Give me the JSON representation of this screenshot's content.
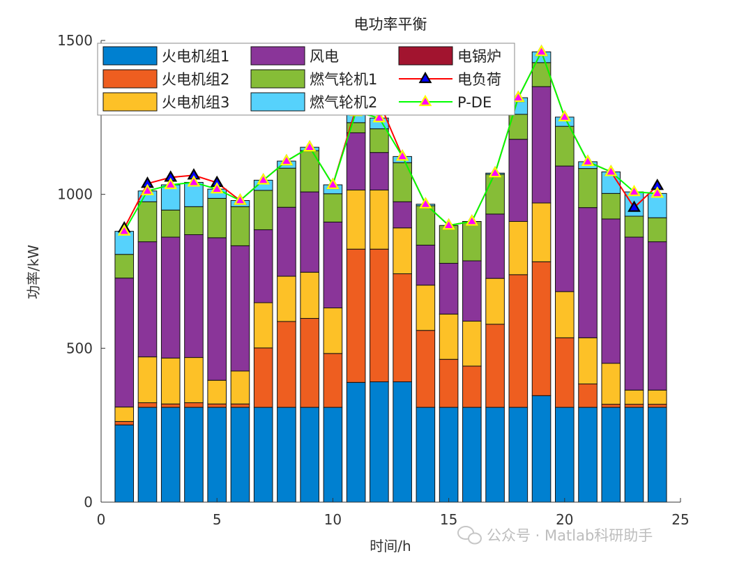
{
  "chart_data": {
    "type": "bar",
    "stacked": true,
    "title": "电功率平衡",
    "xlabel": "时间/h",
    "ylabel": "功率/kW",
    "xlim": [
      0,
      25
    ],
    "ylim": [
      0,
      1500
    ],
    "xticks": [
      0,
      5,
      10,
      15,
      20,
      25
    ],
    "yticks": [
      0,
      500,
      1000,
      1500
    ],
    "grid": false,
    "legend_position": "top-left",
    "x": [
      1,
      2,
      3,
      4,
      5,
      6,
      7,
      8,
      9,
      10,
      11,
      12,
      13,
      14,
      15,
      16,
      17,
      18,
      19,
      20,
      21,
      22,
      23,
      24
    ],
    "series": [
      {
        "name": "火电机组1",
        "color": "#0080D0",
        "values": [
          251,
          308,
          308,
          308,
          308,
          308,
          308,
          308,
          308,
          308,
          389,
          391,
          391,
          308,
          308,
          308,
          308,
          308,
          346,
          308,
          308,
          308,
          308,
          308
        ]
      },
      {
        "name": "火电机组2",
        "color": "#EE5E20",
        "values": [
          11,
          15,
          11,
          15,
          11,
          11,
          193,
          279,
          289,
          175,
          433,
          431,
          351,
          250,
          156,
          134,
          270,
          431,
          435,
          226,
          76,
          10,
          10,
          10
        ]
      },
      {
        "name": "火电机组3",
        "color": "#FDC127",
        "values": [
          47,
          149,
          149,
          147,
          77,
          107,
          147,
          147,
          150,
          148,
          192,
          192,
          149,
          147,
          147,
          146,
          149,
          173,
          191,
          150,
          150,
          133,
          46,
          46
        ]
      },
      {
        "name": "风电",
        "color": "#8A3599",
        "values": [
          419,
          374,
          393,
          399,
          463,
          407,
          237,
          224,
          261,
          279,
          186,
          122,
          85,
          130,
          165,
          196,
          209,
          267,
          378,
          408,
          423,
          469,
          497,
          482
        ]
      },
      {
        "name": "燃气轮机1",
        "color": "#86BD37",
        "values": [
          77,
          130,
          88,
          91,
          128,
          127,
          128,
          127,
          134,
          92,
          33,
          77,
          127,
          128,
          123,
          128,
          129,
          81,
          78,
          129,
          127,
          83,
          68,
          78
        ]
      },
      {
        "name": "燃气轮机2",
        "color": "#56D2FC",
        "values": [
          75,
          35,
          82,
          79,
          30,
          20,
          33,
          23,
          11,
          29,
          35,
          35,
          20,
          5,
          0,
          0,
          4,
          54,
          35,
          30,
          22,
          70,
          79,
          79
        ]
      },
      {
        "name": "电锅炉",
        "color": "#A2142F",
        "values": [
          0,
          0,
          0,
          0,
          0,
          0,
          0,
          0,
          0,
          0,
          0,
          0,
          0,
          0,
          0,
          0,
          0,
          0,
          0,
          0,
          0,
          0,
          0,
          0
        ]
      }
    ],
    "lines": [
      {
        "name": "电负荷",
        "color": "#FF0000",
        "marker_face": "#0000FF",
        "marker_edge": "#000000",
        "values": [
          890,
          1035,
          1055,
          1062,
          1038,
          980,
          1046,
          1108,
          1153,
          1031,
          1280,
          1300,
          1123,
          968,
          899,
          912,
          1069,
          1314,
          1463,
          1251,
          1106,
          1073,
          957,
          1028
        ]
      },
      {
        "name": "P-DE",
        "color": "#00FF00",
        "marker_face": "#FF00FF",
        "marker_edge": "#FFFF00",
        "values": [
          880,
          1011,
          1031,
          1039,
          1017,
          980,
          1046,
          1108,
          1153,
          1031,
          1268,
          1248,
          1123,
          968,
          899,
          912,
          1069,
          1314,
          1463,
          1251,
          1106,
          1073,
          1008,
          1003
        ]
      }
    ]
  },
  "watermark": "公众号 · Matlab科研助手"
}
